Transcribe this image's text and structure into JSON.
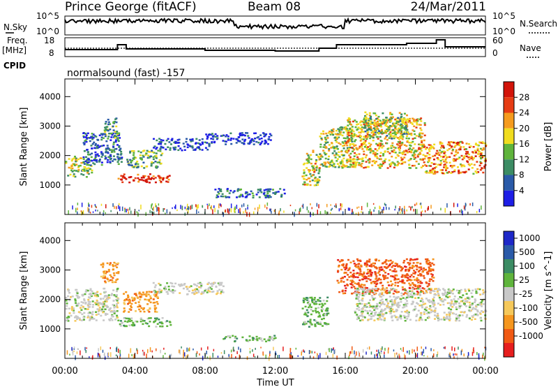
{
  "header": {
    "station": "Prince George (fitACF)",
    "beam": "Beam 08",
    "date": "24/Mar/2011"
  },
  "status_panels": {
    "nsky_label": "N.Sky",
    "nsky_ticks": [
      "10^5",
      "10^0"
    ],
    "nsearch_label": "N.Search",
    "nsearch_ticks": [
      "10^5",
      "10^0"
    ],
    "freq_label_1": "Freq.",
    "freq_label_2": "[MHz]",
    "freq_ticks": [
      "18",
      "8"
    ],
    "nave_label": "Nave",
    "nave_ticks": [
      "60",
      "0"
    ],
    "cpid_label": "CPID",
    "cpid_value": "normalsound (fast) -157"
  },
  "chart_data": [
    {
      "type": "heatmap",
      "name": "power",
      "ylabel": "Slant Range [km]",
      "yticks": [
        "1000",
        "2000",
        "3000",
        "4000"
      ],
      "ylim": [
        0,
        4600
      ],
      "xlim_hours": [
        0,
        24
      ],
      "colorbar_label": "Power [dB]",
      "colorbar_ticks": [
        "28",
        "24",
        "20",
        "16",
        "12",
        "8",
        "4"
      ],
      "colorbar_values": [
        28,
        24,
        20,
        16,
        12,
        8,
        4
      ],
      "colors": [
        "#1e1ee6",
        "#2a5aa8",
        "#3c8c64",
        "#5fb43c",
        "#f0dc1e",
        "#f59b1e",
        "#e63c14",
        "#d2140a"
      ],
      "echo_regions": [
        {
          "t0": 0.0,
          "t1": 1.5,
          "r0": 1300,
          "r1": 2000,
          "level": 0.45
        },
        {
          "t0": 1.0,
          "t1": 3.2,
          "r0": 1700,
          "r1": 2800,
          "level": 0.2
        },
        {
          "t0": 2.2,
          "t1": 3.0,
          "r0": 2600,
          "r1": 3300,
          "level": 0.35
        },
        {
          "t0": 3.0,
          "t1": 6.0,
          "r0": 1100,
          "r1": 1400,
          "level": 0.9
        },
        {
          "t0": 3.5,
          "t1": 5.5,
          "r0": 1600,
          "r1": 2200,
          "level": 0.4
        },
        {
          "t0": 5.0,
          "t1": 8.2,
          "r0": 2200,
          "r1": 2600,
          "level": 0.15
        },
        {
          "t0": 8.0,
          "t1": 11.8,
          "r0": 2400,
          "r1": 2800,
          "level": 0.1
        },
        {
          "t0": 8.5,
          "t1": 12.5,
          "r0": 600,
          "r1": 900,
          "level": 0.2
        },
        {
          "t0": 13.5,
          "t1": 14.5,
          "r0": 1000,
          "r1": 2200,
          "level": 0.55
        },
        {
          "t0": 14.5,
          "t1": 16.5,
          "r0": 1600,
          "r1": 3000,
          "level": 0.5
        },
        {
          "t0": 16.0,
          "t1": 20.5,
          "r0": 1600,
          "r1": 3300,
          "level": 0.6
        },
        {
          "t0": 17.0,
          "t1": 19.5,
          "r0": 2600,
          "r1": 3500,
          "level": 0.45
        },
        {
          "t0": 20.5,
          "t1": 24.0,
          "r0": 1400,
          "r1": 2500,
          "level": 0.7
        }
      ]
    },
    {
      "type": "heatmap",
      "name": "velocity",
      "ylabel": "Slant Range [km]",
      "yticks": [
        "1000",
        "2000",
        "3000",
        "4000"
      ],
      "ylim": [
        0,
        4600
      ],
      "xlim_hours": [
        0,
        24
      ],
      "xticks": [
        "00:00",
        "04:00",
        "08:00",
        "12:00",
        "16:00",
        "20:00",
        "00:00"
      ],
      "xlabel": "Time UT",
      "colorbar_label": "Velocity [m s^-1]",
      "colorbar_ticks": [
        "1000",
        "500",
        "100",
        "25",
        "-25",
        "-100",
        "-500",
        "-1000"
      ],
      "colors": [
        "#e61e1e",
        "#f05a14",
        "#f5961e",
        "#f5c85a",
        "#c8c8c8",
        "#5fb43c",
        "#3c8c64",
        "#2a5aa8",
        "#1e28c8"
      ],
      "echo_regions": [
        {
          "t0": 0.0,
          "t1": 3.0,
          "r0": 1300,
          "r1": 2400,
          "color_index": 4
        },
        {
          "t0": 2.0,
          "t1": 3.0,
          "r0": 2600,
          "r1": 3300,
          "color_index": 2
        },
        {
          "t0": 3.0,
          "t1": 6.0,
          "r0": 1100,
          "r1": 1400,
          "color_index": 5
        },
        {
          "t0": 3.3,
          "t1": 5.3,
          "r0": 1600,
          "r1": 2300,
          "color_index": 2
        },
        {
          "t0": 5.0,
          "t1": 9.0,
          "r0": 2200,
          "r1": 2600,
          "color_index": 4
        },
        {
          "t0": 9.0,
          "t1": 12.0,
          "r0": 600,
          "r1": 800,
          "color_index": 5
        },
        {
          "t0": 13.5,
          "t1": 15.0,
          "r0": 1100,
          "r1": 2100,
          "color_index": 5
        },
        {
          "t0": 15.5,
          "t1": 21.0,
          "r0": 2200,
          "r1": 3400,
          "color_index": 1
        },
        {
          "t0": 16.5,
          "t1": 24.0,
          "r0": 1300,
          "r1": 2400,
          "color_index": 4
        }
      ]
    }
  ]
}
